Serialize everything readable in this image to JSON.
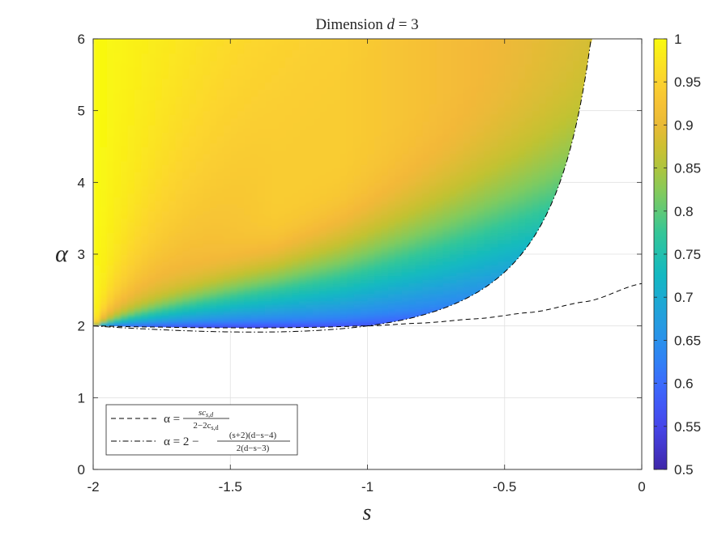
{
  "chart_data": {
    "type": "heatmap",
    "title": {
      "prefix": "Dimension ",
      "var": "d",
      "eq": " = 3"
    },
    "xlabel": "s",
    "ylabel": "α",
    "xlim": [
      -2,
      0
    ],
    "ylim": [
      0,
      6
    ],
    "x_ticks": [
      {
        "value": -2,
        "label": "-2"
      },
      {
        "value": -1.5,
        "label": "-1.5"
      },
      {
        "value": -1,
        "label": "-1"
      },
      {
        "value": -0.5,
        "label": "-0.5"
      },
      {
        "value": 0,
        "label": "0"
      }
    ],
    "y_ticks": [
      {
        "value": 0,
        "label": "0"
      },
      {
        "value": 1,
        "label": "1"
      },
      {
        "value": 2,
        "label": "2"
      },
      {
        "value": 3,
        "label": "3"
      },
      {
        "value": 4,
        "label": "4"
      },
      {
        "value": 5,
        "label": "5"
      },
      {
        "value": 6,
        "label": "6"
      }
    ],
    "grid": true,
    "colorbar": {
      "range": [
        0.5,
        1
      ],
      "colormap": "parula",
      "ticks": [
        {
          "value": 0.5,
          "label": "0.5"
        },
        {
          "value": 0.55,
          "label": "0.55"
        },
        {
          "value": 0.6,
          "label": "0.6"
        },
        {
          "value": 0.65,
          "label": "0.65"
        },
        {
          "value": 0.7,
          "label": "0.7"
        },
        {
          "value": 0.75,
          "label": "0.75"
        },
        {
          "value": 0.8,
          "label": "0.8"
        },
        {
          "value": 0.85,
          "label": "0.85"
        },
        {
          "value": 0.9,
          "label": "0.9"
        },
        {
          "value": 0.95,
          "label": "0.95"
        },
        {
          "value": 1,
          "label": "1"
        }
      ]
    },
    "curves": [
      {
        "name": "α = sc_{s,d} / (2−2c_{s,d})",
        "style": "dashed",
        "points": [
          [
            -2,
            2.0
          ],
          [
            -1.8,
            1.985
          ],
          [
            -1.6,
            1.975
          ],
          [
            -1.4,
            1.972
          ],
          [
            -1.2,
            1.98
          ],
          [
            -1.0,
            2.0
          ],
          [
            -0.8,
            2.04
          ],
          [
            -0.6,
            2.1
          ],
          [
            -0.4,
            2.19
          ],
          [
            -0.2,
            2.34
          ],
          [
            0,
            2.59
          ]
        ]
      },
      {
        "name": "α = 2 − (s+2)(d−s−4) / (2(d−s−3))",
        "style": "dash-dot",
        "formula": "2 - (s+2)*(d-s-4)/(2*(d-s-3))",
        "d": 3,
        "s_range": [
          -2,
          -0.18
        ]
      }
    ],
    "legend": {
      "placement": "bottom-left",
      "entries": [
        {
          "style": "dashed",
          "lhs": "α =",
          "num": "sc",
          "num_sub": "s,d",
          "den": "2−2c",
          "den_sub": "s,d"
        },
        {
          "style": "dash-dot",
          "lhs": "α = 2 −",
          "num": "(s+2)(d−s−4)",
          "den": "2(d−s−3)"
        }
      ]
    },
    "colors": {
      "parula": [
        "#3e26a8",
        "#4743e6",
        "#3e64ff",
        "#2d89f2",
        "#22a2db",
        "#12b9c1",
        "#31c69a",
        "#7ecb60",
        "#c2c230",
        "#f3b839",
        "#fcd52e",
        "#f9fb0e"
      ],
      "line": "#000000",
      "grid": "#e1e1e1",
      "axis": "#262626"
    }
  }
}
